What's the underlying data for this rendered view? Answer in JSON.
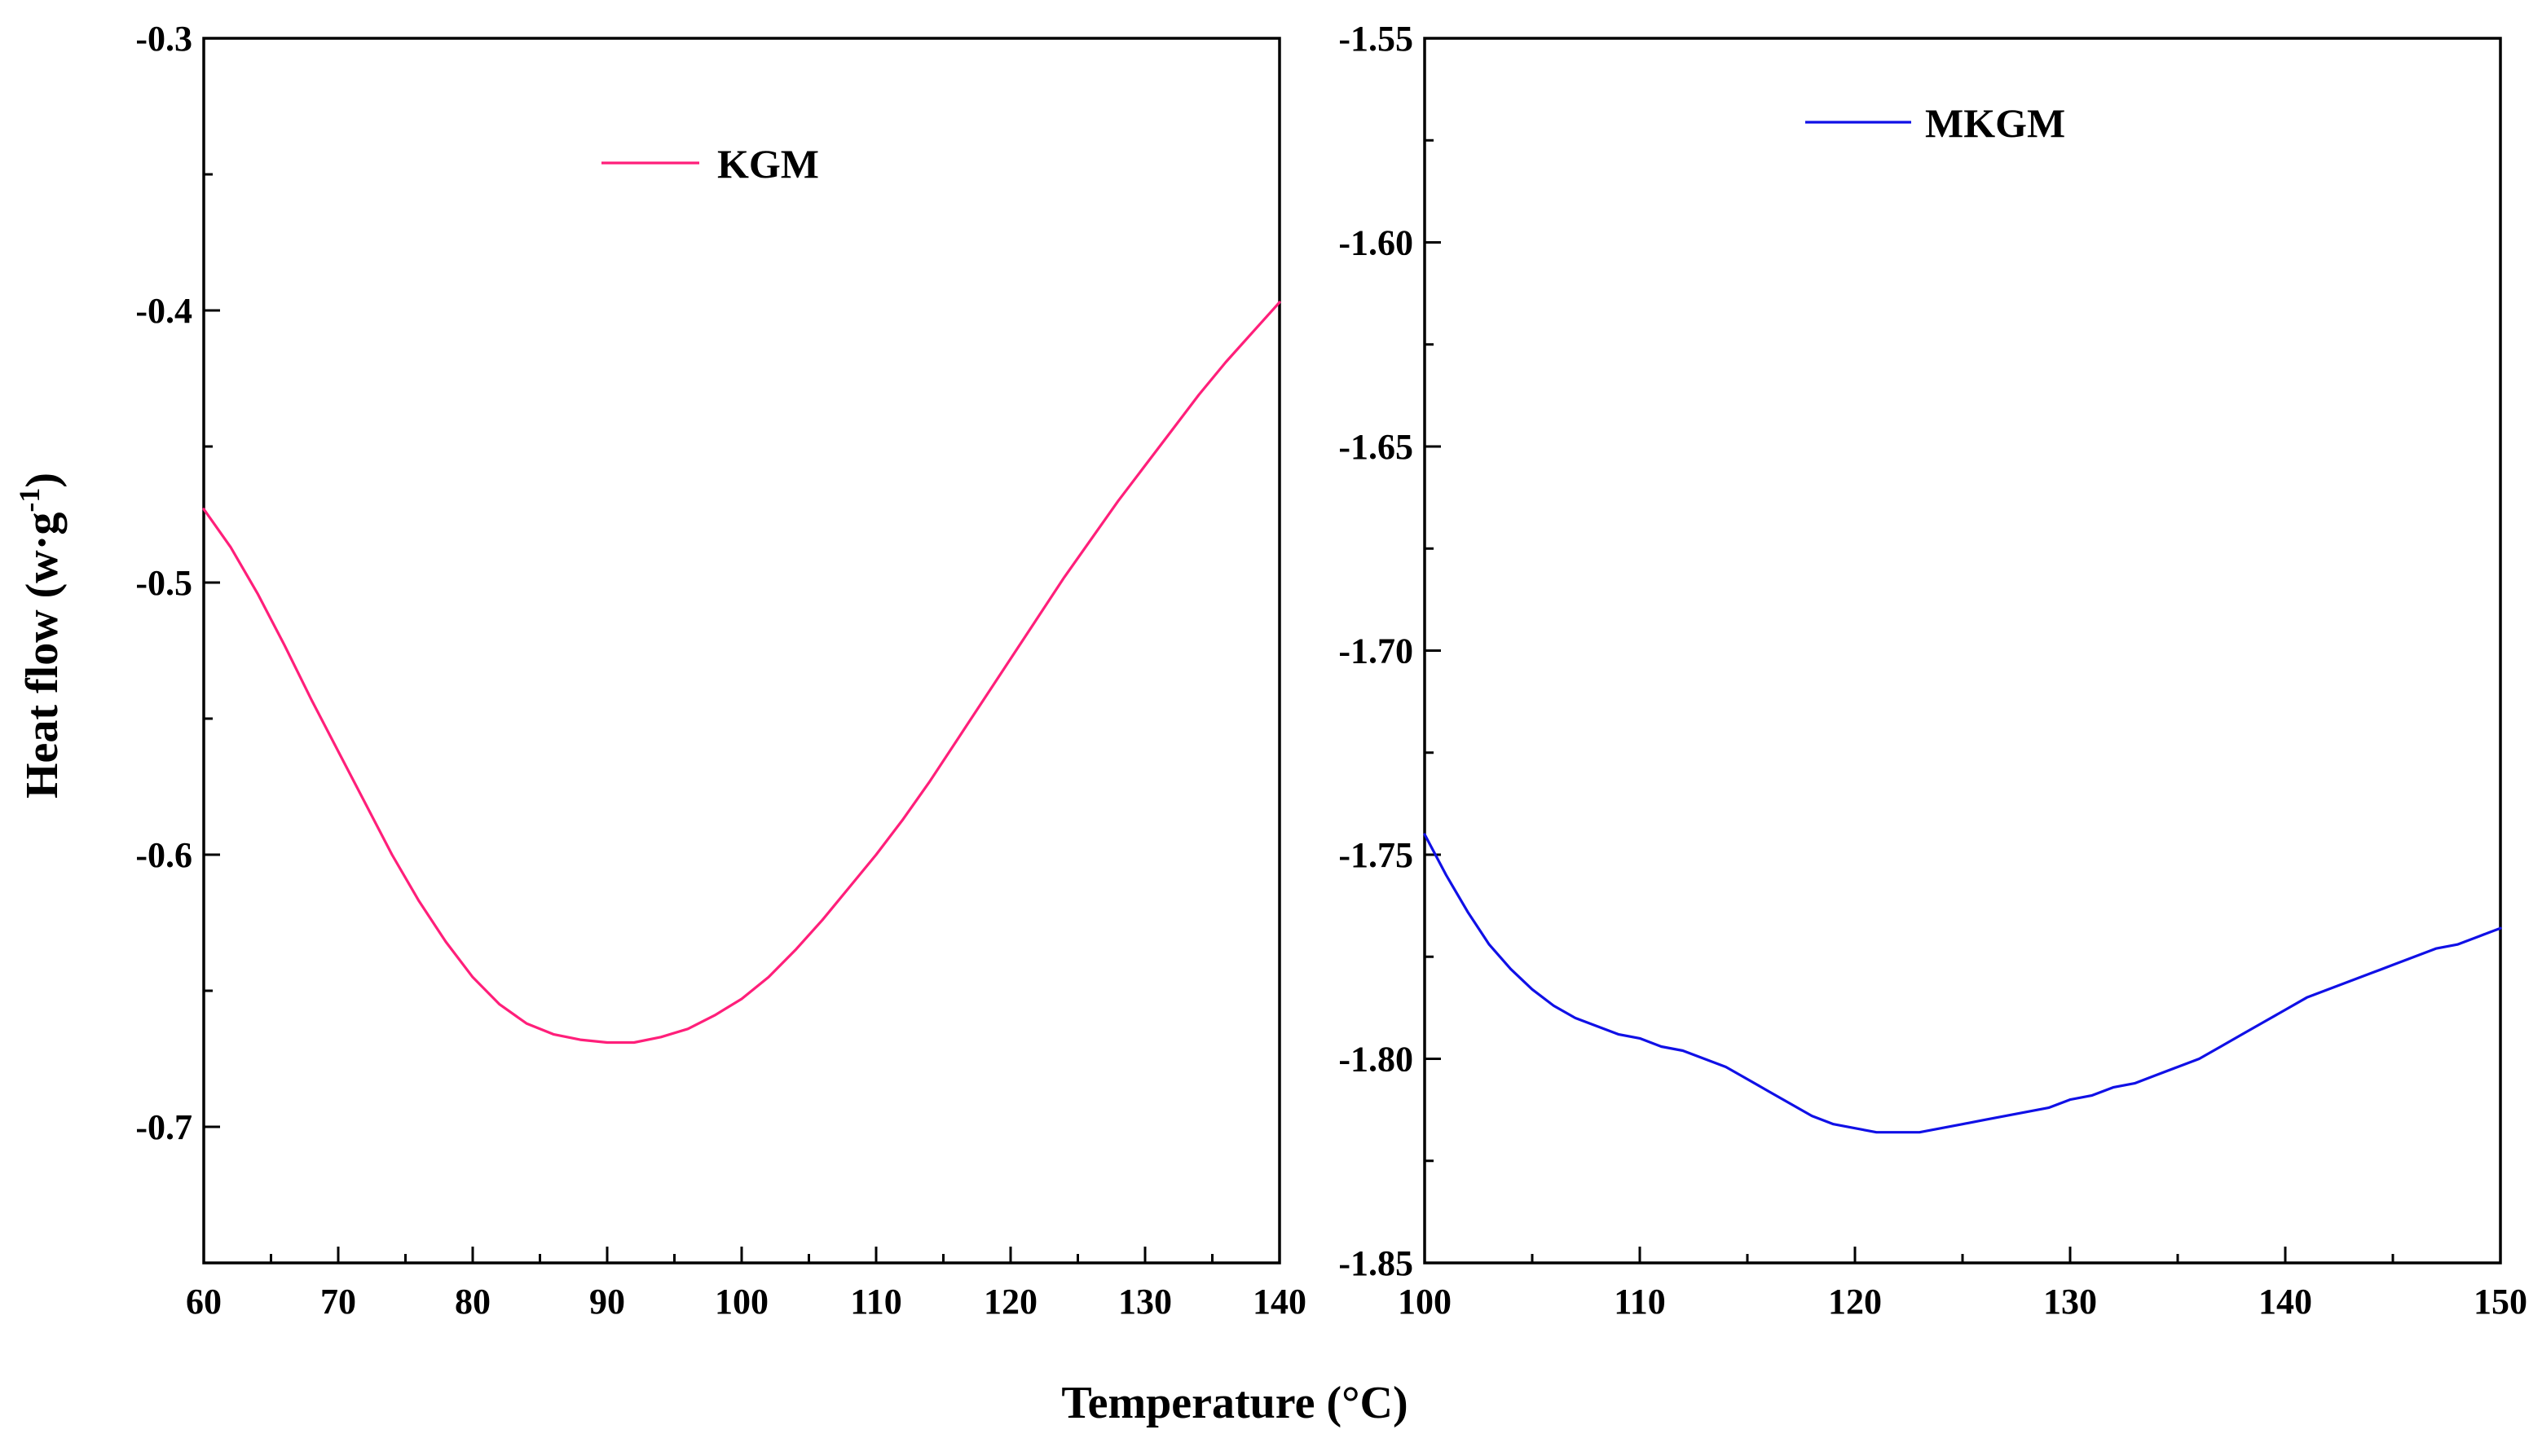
{
  "colors": {
    "kgm": "#ff1f7a",
    "mkgm": "#1010e6",
    "axis": "#000000"
  },
  "figure": {
    "ylabel_main": "Heat flow (w·g",
    "ylabel_sup": "-1",
    "ylabel_end": ")",
    "xlabel": "Temperature (°C)"
  },
  "chart_data": [
    {
      "type": "line",
      "title": "",
      "xlabel": "Temperature (°C)",
      "ylabel": "Heat flow (w·g-1)",
      "xlim": [
        60,
        140
      ],
      "ylim": [
        -0.75,
        -0.3
      ],
      "xticks": [
        60,
        70,
        80,
        90,
        100,
        110,
        120,
        130,
        140
      ],
      "xtick_labels": [
        "60",
        "70",
        "80",
        "90",
        "100",
        "110",
        "120",
        "130",
        "140"
      ],
      "yticks": [
        -0.7,
        -0.6,
        -0.5,
        -0.4,
        -0.3
      ],
      "ytick_labels": [
        "-0.7",
        "-0.6",
        "-0.5",
        "-0.4",
        "-0.3"
      ],
      "yminor": [
        -0.75,
        -0.65,
        -0.55,
        -0.45,
        -0.35
      ],
      "xminor": [
        65,
        75,
        85,
        95,
        105,
        115,
        125,
        135
      ],
      "legend": "top-center",
      "series": [
        {
          "name": "KGM",
          "x": [
            60,
            62,
            64,
            66,
            68,
            70,
            72,
            74,
            76,
            78,
            80,
            82,
            84,
            86,
            88,
            90,
            92,
            94,
            96,
            98,
            100,
            102,
            104,
            106,
            108,
            110,
            112,
            114,
            116,
            118,
            120,
            122,
            124,
            126,
            128,
            130,
            132,
            134,
            136,
            138,
            140
          ],
          "y": [
            -0.473,
            -0.487,
            -0.504,
            -0.523,
            -0.543,
            -0.562,
            -0.581,
            -0.6,
            -0.617,
            -0.632,
            -0.645,
            -0.655,
            -0.662,
            -0.666,
            -0.668,
            -0.669,
            -0.669,
            -0.667,
            -0.664,
            -0.659,
            -0.653,
            -0.645,
            -0.635,
            -0.624,
            -0.612,
            -0.6,
            -0.587,
            -0.573,
            -0.558,
            -0.543,
            -0.528,
            -0.513,
            -0.498,
            -0.484,
            -0.47,
            -0.457,
            -0.444,
            -0.431,
            -0.419,
            -0.408,
            -0.397
          ]
        }
      ]
    },
    {
      "type": "line",
      "title": "",
      "xlabel": "Temperature (°C)",
      "ylabel": "",
      "xlim": [
        100,
        150
      ],
      "ylim": [
        -1.85,
        -1.55
      ],
      "xticks": [
        100,
        110,
        120,
        130,
        140,
        150
      ],
      "xtick_labels": [
        "100",
        "110",
        "120",
        "130",
        "140",
        "150"
      ],
      "yticks": [
        -1.85,
        -1.8,
        -1.75,
        -1.7,
        -1.65,
        -1.6,
        -1.55
      ],
      "ytick_labels": [
        "-1.85",
        "-1.80",
        "-1.75",
        "-1.70",
        "-1.65",
        "-1.60",
        "-1.55"
      ],
      "yminor": [
        -1.825,
        -1.775,
        -1.725,
        -1.675,
        -1.625,
        -1.575
      ],
      "xminor": [
        105,
        115,
        125,
        135,
        145
      ],
      "legend": "top-center",
      "series": [
        {
          "name": "MKGM",
          "x": [
            100,
            101,
            102,
            103,
            104,
            105,
            106,
            107,
            108,
            109,
            110,
            111,
            112,
            113,
            114,
            115,
            116,
            117,
            118,
            119,
            120,
            121,
            122,
            123,
            124,
            125,
            126,
            127,
            128,
            129,
            130,
            131,
            132,
            133,
            134,
            135,
            136,
            137,
            138,
            139,
            140,
            141,
            142,
            143,
            144,
            145,
            146,
            147,
            148,
            149,
            150
          ],
          "y": [
            -1.745,
            -1.755,
            -1.764,
            -1.772,
            -1.778,
            -1.783,
            -1.787,
            -1.79,
            -1.792,
            -1.794,
            -1.795,
            -1.797,
            -1.798,
            -1.8,
            -1.802,
            -1.805,
            -1.808,
            -1.811,
            -1.814,
            -1.816,
            -1.817,
            -1.818,
            -1.818,
            -1.818,
            -1.817,
            -1.816,
            -1.815,
            -1.814,
            -1.813,
            -1.812,
            -1.81,
            -1.809,
            -1.807,
            -1.806,
            -1.804,
            -1.802,
            -1.8,
            -1.797,
            -1.794,
            -1.791,
            -1.788,
            -1.785,
            -1.783,
            -1.781,
            -1.779,
            -1.777,
            -1.775,
            -1.773,
            -1.772,
            -1.77,
            -1.768
          ]
        }
      ]
    }
  ]
}
